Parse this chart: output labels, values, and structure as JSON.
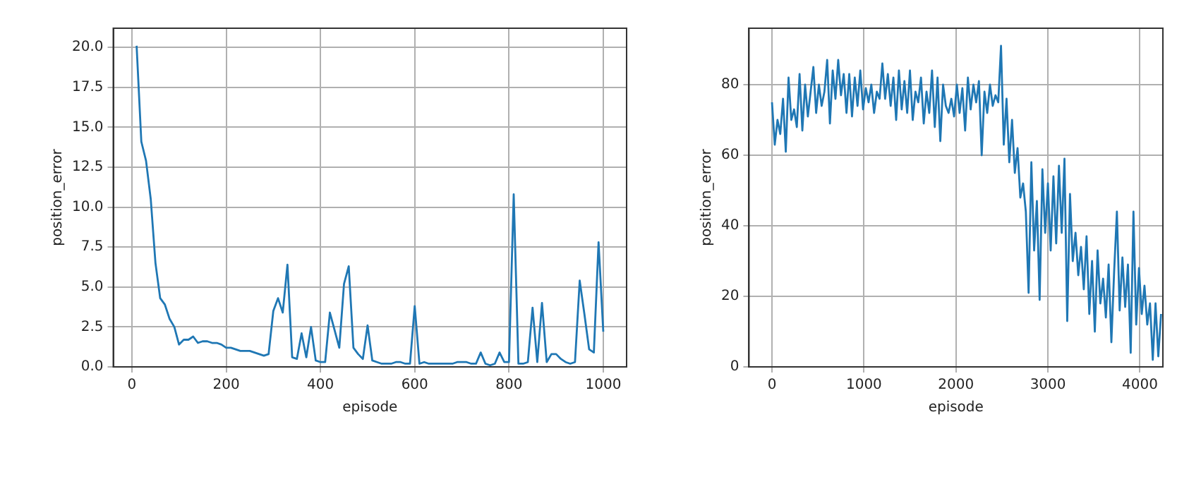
{
  "chart_data": [
    {
      "type": "line",
      "xlabel": "episode",
      "ylabel": "position_error",
      "grid": true,
      "marker": "none",
      "line_style": "solid",
      "xlim": [
        -39.5,
        1049.5
      ],
      "xticks": [
        0,
        200,
        400,
        600,
        800,
        1000
      ],
      "ylim": [
        0,
        21.2
      ],
      "yticks": [
        {
          "value": 0,
          "label": "0.0"
        },
        {
          "value": 2.5,
          "label": "2.5"
        },
        {
          "value": 5,
          "label": "5.0"
        },
        {
          "value": 7.5,
          "label": "7.5"
        },
        {
          "value": 10,
          "label": "10.0"
        },
        {
          "value": 12.5,
          "label": "12.5"
        },
        {
          "value": 15,
          "label": "15.0"
        },
        {
          "value": 17.5,
          "label": "17.5"
        },
        {
          "value": 20,
          "label": "20.0"
        }
      ],
      "x": [
        10,
        20,
        30,
        40,
        50,
        60,
        70,
        80,
        90,
        100,
        110,
        120,
        130,
        140,
        150,
        160,
        170,
        180,
        190,
        200,
        210,
        220,
        230,
        240,
        250,
        260,
        270,
        280,
        290,
        300,
        310,
        320,
        330,
        340,
        350,
        360,
        370,
        380,
        390,
        400,
        410,
        420,
        430,
        440,
        450,
        460,
        470,
        480,
        490,
        500,
        510,
        520,
        530,
        540,
        550,
        560,
        570,
        580,
        590,
        600,
        610,
        620,
        630,
        640,
        650,
        660,
        670,
        680,
        690,
        700,
        710,
        720,
        730,
        740,
        750,
        760,
        770,
        780,
        790,
        800,
        810,
        820,
        830,
        840,
        850,
        860,
        870,
        880,
        890,
        900,
        910,
        920,
        930,
        940,
        950,
        960,
        970,
        980,
        990,
        1000
      ],
      "series": [
        {
          "color": "#1f77b4",
          "values": [
            20.1,
            14.1,
            12.9,
            10.5,
            6.5,
            4.3,
            3.9,
            3.0,
            2.5,
            1.4,
            1.7,
            1.7,
            1.9,
            1.5,
            1.6,
            1.6,
            1.5,
            1.5,
            1.4,
            1.2,
            1.2,
            1.1,
            1.0,
            1.0,
            1.0,
            0.9,
            0.8,
            0.7,
            0.8,
            3.5,
            4.3,
            3.4,
            6.4,
            0.6,
            0.5,
            2.1,
            0.6,
            2.5,
            0.4,
            0.3,
            0.3,
            3.4,
            2.3,
            1.2,
            5.2,
            6.3,
            1.2,
            0.8,
            0.5,
            2.6,
            0.4,
            0.3,
            0.2,
            0.2,
            0.2,
            0.3,
            0.3,
            0.2,
            0.2,
            3.8,
            0.2,
            0.3,
            0.2,
            0.2,
            0.2,
            0.2,
            0.2,
            0.2,
            0.3,
            0.3,
            0.3,
            0.2,
            0.2,
            0.9,
            0.2,
            0.1,
            0.2,
            0.9,
            0.3,
            0.3,
            10.8,
            0.2,
            0.2,
            0.3,
            3.7,
            0.3,
            4.0,
            0.3,
            0.8,
            0.8,
            0.5,
            0.3,
            0.2,
            0.3,
            5.4,
            3.3,
            1.1,
            0.9,
            7.8,
            2.2
          ]
        }
      ]
    },
    {
      "type": "line",
      "xlabel": "episode",
      "ylabel": "position_error",
      "grid": true,
      "marker": "none",
      "line_style": "solid",
      "xlim": [
        -250,
        4250
      ],
      "xticks": [
        0,
        1000,
        2000,
        3000,
        4000
      ],
      "ylim": [
        0,
        96
      ],
      "yticks": [
        0,
        20,
        40,
        60,
        80
      ],
      "x": [
        0,
        30,
        60,
        90,
        120,
        150,
        180,
        210,
        240,
        270,
        300,
        330,
        360,
        390,
        420,
        450,
        480,
        510,
        540,
        570,
        600,
        630,
        660,
        690,
        720,
        750,
        780,
        810,
        840,
        870,
        900,
        930,
        960,
        990,
        1020,
        1050,
        1080,
        1110,
        1140,
        1170,
        1200,
        1230,
        1260,
        1290,
        1320,
        1350,
        1380,
        1410,
        1440,
        1470,
        1500,
        1530,
        1560,
        1590,
        1620,
        1650,
        1680,
        1710,
        1740,
        1770,
        1800,
        1830,
        1860,
        1890,
        1920,
        1950,
        1980,
        2010,
        2040,
        2070,
        2100,
        2130,
        2160,
        2190,
        2220,
        2250,
        2280,
        2310,
        2340,
        2370,
        2400,
        2430,
        2460,
        2490,
        2520,
        2550,
        2580,
        2610,
        2640,
        2670,
        2700,
        2730,
        2760,
        2790,
        2820,
        2850,
        2880,
        2910,
        2940,
        2970,
        3000,
        3030,
        3060,
        3090,
        3120,
        3150,
        3180,
        3210,
        3240,
        3270,
        3300,
        3330,
        3360,
        3390,
        3420,
        3450,
        3480,
        3510,
        3540,
        3570,
        3600,
        3630,
        3660,
        3690,
        3720,
        3750,
        3780,
        3810,
        3840,
        3870,
        3900,
        3930,
        3960,
        3990,
        4020,
        4050,
        4080,
        4110,
        4140,
        4170,
        4200,
        4230
      ],
      "series": [
        {
          "color": "#1f77b4",
          "values": [
            75,
            63,
            70,
            66,
            76,
            61,
            82,
            70,
            73,
            68,
            83,
            67,
            80,
            71,
            78,
            85,
            72,
            80,
            74,
            78,
            87,
            69,
            84,
            76,
            87,
            77,
            83,
            72,
            83,
            71,
            82,
            74,
            84,
            73,
            79,
            75,
            80,
            72,
            78,
            76,
            86,
            76,
            83,
            74,
            82,
            70,
            84,
            73,
            81,
            72,
            84,
            70,
            78,
            75,
            82,
            69,
            78,
            72,
            84,
            68,
            82,
            64,
            80,
            74,
            72,
            76,
            71,
            80,
            72,
            79,
            67,
            82,
            73,
            80,
            75,
            81,
            60,
            78,
            72,
            80,
            74,
            77,
            75,
            91,
            63,
            76,
            58,
            70,
            55,
            62,
            48,
            52,
            44,
            21,
            58,
            33,
            47,
            19,
            56,
            38,
            52,
            33,
            54,
            35,
            57,
            38,
            59,
            13,
            49,
            30,
            38,
            26,
            34,
            22,
            37,
            15,
            30,
            10,
            33,
            18,
            25,
            14,
            29,
            7,
            27,
            44,
            16,
            31,
            17,
            29,
            4,
            44,
            12,
            28,
            15,
            23,
            12,
            18,
            2,
            18,
            3,
            15
          ]
        }
      ]
    }
  ]
}
